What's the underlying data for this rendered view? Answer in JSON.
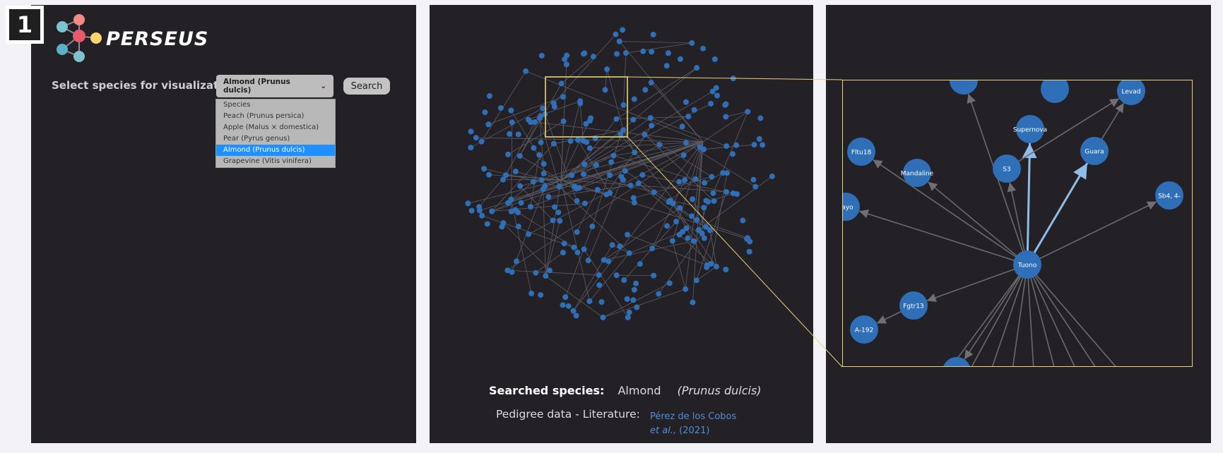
{
  "step": "1",
  "brand": "PERSEUS",
  "select": {
    "label": "Select species for visualization:",
    "value": "Almond (Prunus dulcis)",
    "options": [
      "Species",
      "Peach (Prunus persica)",
      "Apple (Malus × domestica)",
      "Pear (Pyrus genus)",
      "Almond (Prunus dulcis)",
      "Grapevine (Vitis vinifera)"
    ],
    "selected_index": 4
  },
  "search_button": "Search",
  "searched": {
    "label": "Searched species:",
    "common": "Almond",
    "latin": "(Prunus dulcis)"
  },
  "pedigree": {
    "label": "Pedigree data - Literature:",
    "link_line1": "Pérez de los Cobos",
    "link_etal": "et al.,",
    "link_year": "(2021)"
  },
  "zoom_nodes": [
    "Levad",
    "Supernova",
    "Guara",
    "Fltu18",
    "S3",
    "Mandaline",
    "Sb4, 4-",
    "cayo",
    "Tuono",
    "Fgtr13",
    "A-192"
  ],
  "colors": {
    "panel": "#232126",
    "node": "#2f6fb8",
    "edge": "#6a6a6e",
    "highlight": "#ead37a",
    "link": "#4f8ed6",
    "selected": "#1e90ff"
  }
}
